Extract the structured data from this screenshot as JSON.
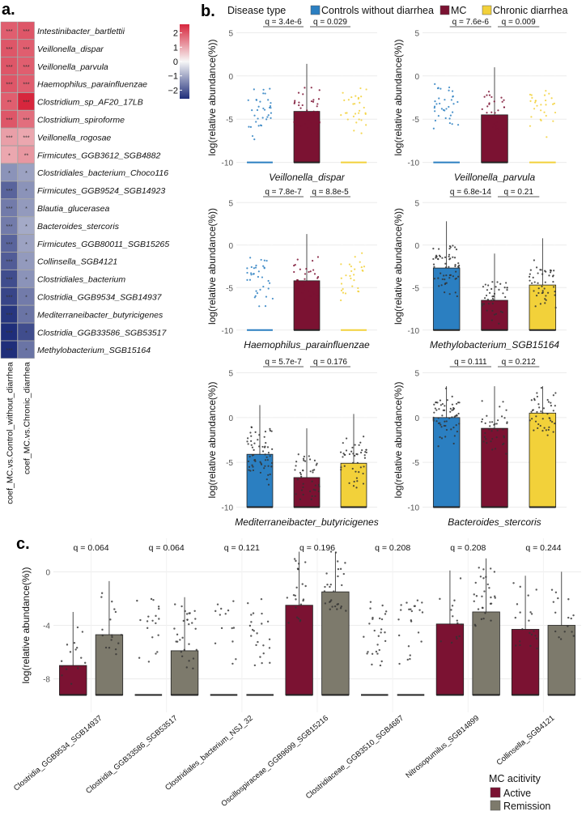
{
  "colors": {
    "controls": "#2b7fc1",
    "mc": "#7b1232",
    "chronic": "#f2d13a",
    "remission": "#7d7a6c",
    "heat_pos": "#d7263d",
    "heat_zero": "#f7f7f7",
    "heat_neg": "#1f2e7a"
  },
  "panel_labels": {
    "a": "a.",
    "b": "b.",
    "c": "c."
  },
  "chart_data": [
    {
      "type": "heatmap",
      "panel": "a",
      "rows": [
        "Intestinibacter_bartlettii",
        "Veillonella_dispar",
        "Veillonella_parvula",
        "Haemophilus_parainfluenzae",
        "Clostridium_sp_AF20_17LB",
        "Clostridium_spiroforme",
        "Veillonella_rogosae",
        "Firmicutes_GGB3612_SGB4882",
        "Clostridiales_bacterium_Choco116",
        "Firmicutes_GGB9524_SGB14923",
        "Blautia_glucerasea",
        "Bacteroides_stercoris",
        "Firmicutes_GGB80011_SGB15265",
        "Collinsella_SGB4121",
        "Clostridiales_bacterium",
        "Clostridia_GGB9534_SGB14937",
        "Mediterraneibacter_butyricigenes",
        "Clostridia_GGB33586_SGB53517",
        "Methylobacterium_SGB15164"
      ],
      "columns": [
        "coef_MC.vs.Control_without_diarrhea",
        "coef_MC.vs.Chronic_diarrhea"
      ],
      "values": [
        [
          1.9,
          2.0
        ],
        [
          2.0,
          1.9
        ],
        [
          2.0,
          1.9
        ],
        [
          2.0,
          1.9
        ],
        [
          1.9,
          2.6
        ],
        [
          2.0,
          1.7
        ],
        [
          1.1,
          1.0
        ],
        [
          1.0,
          1.2
        ],
        [
          -1.3,
          -1.1
        ],
        [
          -1.9,
          -1.3
        ],
        [
          -1.6,
          -1.2
        ],
        [
          -1.6,
          -1.0
        ],
        [
          -1.9,
          -1.1
        ],
        [
          -2.0,
          -1.2
        ],
        [
          -2.2,
          -1.3
        ],
        [
          -2.3,
          -1.6
        ],
        [
          -2.5,
          -1.7
        ],
        [
          -2.6,
          -2.2
        ],
        [
          -2.6,
          -1.7
        ]
      ],
      "stars": [
        [
          "***",
          "***"
        ],
        [
          "***",
          "***"
        ],
        [
          "***",
          "***"
        ],
        [
          "***",
          "***"
        ],
        [
          "**",
          "***"
        ],
        [
          "***",
          "***"
        ],
        [
          "***",
          "***"
        ],
        [
          "*",
          "**"
        ],
        [
          "*",
          "*"
        ],
        [
          "***",
          "*"
        ],
        [
          "***",
          "*"
        ],
        [
          "***",
          "*"
        ],
        [
          "***",
          "*"
        ],
        [
          "***",
          "*"
        ],
        [
          "***",
          "*"
        ],
        [
          "***",
          "*"
        ],
        [
          "***",
          "*"
        ],
        [
          "***",
          "*"
        ],
        [
          "***",
          "*"
        ]
      ],
      "legend": {
        "ticks": [
          2,
          1,
          0,
          -1,
          -2
        ],
        "labels": [
          "2",
          "1",
          "0",
          "−1",
          "−2"
        ],
        "range": [
          -2.6,
          2.6
        ]
      }
    },
    {
      "type": "bar",
      "panel": "b",
      "legend_title": "Disease type",
      "legend_entries": [
        "Controls without diarrhea",
        "MC",
        "Chronic diarrhea"
      ],
      "ylabel": "log(relative abundance(%))",
      "ylim": [
        -10.5,
        5.5
      ],
      "yticks": [
        5,
        0,
        -5,
        -10
      ],
      "subplots": [
        {
          "name": "Veillonella_dispar",
          "q": [
            "q = 3.4e-6",
            "q = 0.029"
          ],
          "means": [
            -10,
            -4.1,
            -10
          ],
          "n": [
            35,
            42,
            30
          ]
        },
        {
          "name": "Veillonella_parvula",
          "q": [
            "q = 7.6e-6",
            "q = 0.009"
          ],
          "means": [
            -10,
            -4.5,
            -10
          ],
          "n": [
            35,
            38,
            28
          ]
        },
        {
          "name": "Haemophilus_parainfluenzae",
          "q": [
            "q = 7.8e-7",
            "q = 8.8e-5"
          ],
          "means": [
            -10,
            -4.2,
            -10
          ],
          "n": [
            35,
            38,
            28
          ]
        },
        {
          "name": "Methylobacterium_SGB15164",
          "q": [
            "q = 6.8e-14",
            "q = 0.21"
          ],
          "means": [
            -2.7,
            -6.5,
            -4.7
          ],
          "n": [
            60,
            40,
            45
          ]
        },
        {
          "name": "Mediterraneibacter_butyricigenes",
          "q": [
            "q = 5.7e-7",
            "q = 0.176"
          ],
          "means": [
            -4.1,
            -6.7,
            -5.1
          ],
          "n": [
            60,
            40,
            45
          ]
        },
        {
          "name": "Bacteroides_stercoris",
          "q": [
            "q = 0.111",
            "q = 0.212"
          ],
          "means": [
            0.0,
            -1.2,
            0.5
          ],
          "n": [
            60,
            40,
            45
          ]
        }
      ]
    },
    {
      "type": "bar",
      "panel": "c",
      "ylabel": "log(relative abundance(%))",
      "ylim": [
        -10.5,
        2.5
      ],
      "yticks": [
        0,
        -4,
        -8
      ],
      "legend_title": "MC acitivity",
      "legend_entries": [
        "Active",
        "Remission"
      ],
      "categories": [
        "Clostridia_GGB9534_SGB14937",
        "Clostridia_GGB33586_SGB53517",
        "Clostridiales_bacterium_NSJ_32",
        "Oscillospiraceae_GGB9699_SGB15216",
        "Clostridiaceae_GGB3510_SGB4687",
        "Nitrosopumilus_SGB14899",
        "Collinsella_SGB4121"
      ],
      "q": [
        "q = 0.064",
        "q = 0.064",
        "q = 0.121",
        "q = 0.196",
        "q = 0.208",
        "q = 0.208",
        "q = 0.244"
      ],
      "series": [
        {
          "name": "Active",
          "values": [
            -7.0,
            -9.2,
            -9.2,
            -2.5,
            -9.2,
            -3.9,
            -4.3
          ]
        },
        {
          "name": "Remission",
          "values": [
            -4.7,
            -5.9,
            -9.2,
            -1.5,
            -9.2,
            -3.0,
            -4.0
          ]
        }
      ]
    }
  ]
}
